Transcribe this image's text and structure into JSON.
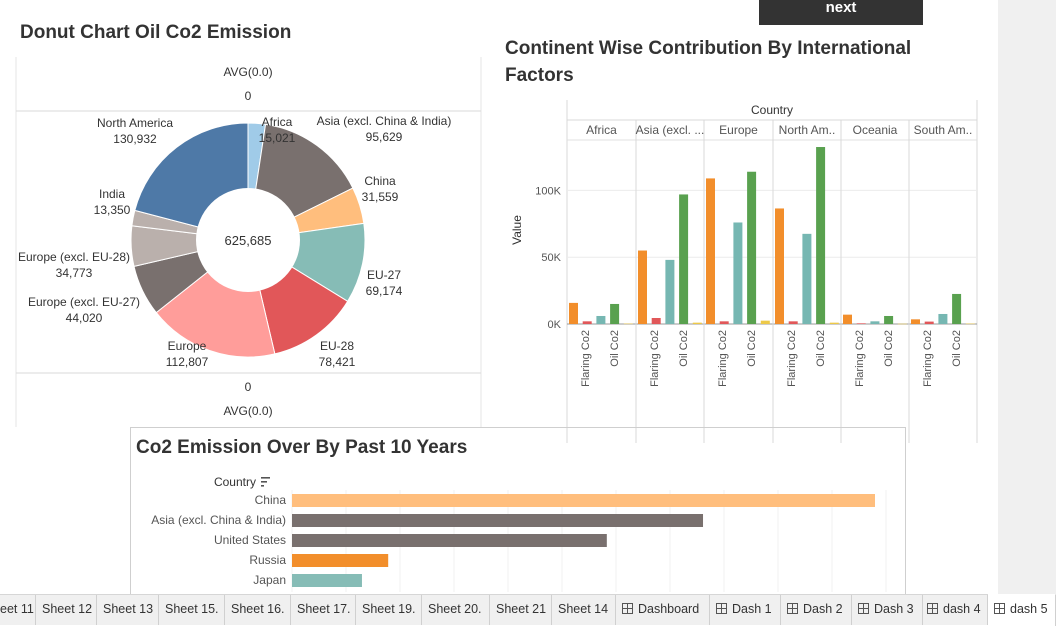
{
  "topbar": {
    "next_label": "next"
  },
  "donut": {
    "title": "Donut Chart Oil Co2 Emission",
    "avg_top": "AVG(0.0)",
    "zero_top": "0",
    "zero_bottom": "0",
    "avg_bottom": "AVG(0.0)",
    "center_total": "625,685"
  },
  "continent": {
    "title_line1": "Continent Wise Contribution By International",
    "title_line2": "Factors",
    "header": "Country",
    "y_axis_label": "Value",
    "y_ticks": [
      "0K",
      "50K",
      "100K"
    ],
    "panels": [
      "Africa",
      "Asia (excl. ...",
      "Europe",
      "North Am..",
      "Oceania",
      "South Am.."
    ],
    "x_labels": [
      "Flaring Co2",
      "Oil Co2"
    ]
  },
  "bars": {
    "title": "Co2 Emission Over By Past 10 Years",
    "header": "Country"
  },
  "sheets": {
    "tabs": [
      "eet 11",
      "Sheet 12",
      "Sheet 13",
      "Sheet 15.",
      "Sheet 16.",
      "Sheet 17.",
      "Sheet 19.",
      "Sheet 20.",
      "Sheet 21",
      "Sheet 14",
      "Dashboard",
      "Dash 1",
      "Dash 2",
      "Dash 3",
      "dash 4",
      "dash 5"
    ]
  },
  "colors": {
    "orange": "#f28e2b",
    "red": "#e15759",
    "teal": "#76b7b2",
    "green": "#59a14f",
    "yellow": "#edc948",
    "brown": "#79706e",
    "light_orange": "#ffbe7d",
    "blue": "#4e79a7"
  },
  "chart_data": [
    {
      "type": "pie",
      "title": "Donut Chart Oil Co2 Emission",
      "total": "625,685",
      "slices": [
        {
          "label": "Africa",
          "value": 15021,
          "value_text": "15,021",
          "color": "#a0cbe8"
        },
        {
          "label": "Asia (excl. China & India)",
          "value": 95629,
          "value_text": "95,629",
          "color": "#79706e"
        },
        {
          "label": "China",
          "value": 31559,
          "value_text": "31,559",
          "color": "#ffbe7d"
        },
        {
          "label": "EU-27",
          "value": 69174,
          "value_text": "69,174",
          "color": "#86bcb6"
        },
        {
          "label": "EU-28",
          "value": 78421,
          "value_text": "78,421",
          "color": "#e15759"
        },
        {
          "label": "Europe",
          "value": 112807,
          "value_text": "112,807",
          "color": "#ff9d9a"
        },
        {
          "label": "Europe (excl. EU-27)",
          "value": 44020,
          "value_text": "44,020",
          "color": "#79706e"
        },
        {
          "label": "Europe (excl. EU-28)",
          "value": 34773,
          "value_text": "34,773",
          "color": "#bab0ac"
        },
        {
          "label": "India",
          "value": 13350,
          "value_text": "13,350",
          "color": "#bab0ac"
        },
        {
          "label": "North America",
          "value": 130932,
          "value_text": "130,932",
          "color": "#4e79a7"
        }
      ]
    },
    {
      "type": "bar",
      "title": "Continent Wise Contribution By International Factors",
      "ylabel": "Value",
      "ylim": [
        0,
        140000
      ],
      "y_ticks": [
        0,
        50000,
        100000
      ],
      "categories": [
        "Africa",
        "Asia (excl. ...",
        "Europe",
        "North Am..",
        "Oceania",
        "South Am.."
      ],
      "series": [
        {
          "values": [
            15800,
            55000,
            109000,
            86500,
            7000,
            3500
          ],
          "color": "#f28e2b"
        },
        {
          "values": [
            2000,
            4500,
            2000,
            2000,
            500,
            1800
          ],
          "color": "#e15759"
        },
        {
          "values": [
            6000,
            48000,
            76000,
            67500,
            2000,
            7500
          ],
          "color": "#76b7b2"
        },
        {
          "values": [
            15000,
            97000,
            114000,
            132500,
            6000,
            22500
          ],
          "color": "#59a14f"
        },
        {
          "values": [
            300,
            1000,
            2500,
            1000,
            200,
            300
          ],
          "color": "#edc948"
        }
      ]
    },
    {
      "type": "bar",
      "orientation": "horizontal",
      "title": "Co2 Emission Over By Past 10 Years",
      "categories": [
        "China",
        "Asia (excl. China & India)",
        "United States",
        "Russia",
        "Japan"
      ],
      "values": [
        100,
        70.5,
        54,
        16.5,
        12
      ],
      "colors": [
        "#ffbe7d",
        "#79706e",
        "#79706e",
        "#f28e2b",
        "#86bcb6"
      ]
    }
  ]
}
